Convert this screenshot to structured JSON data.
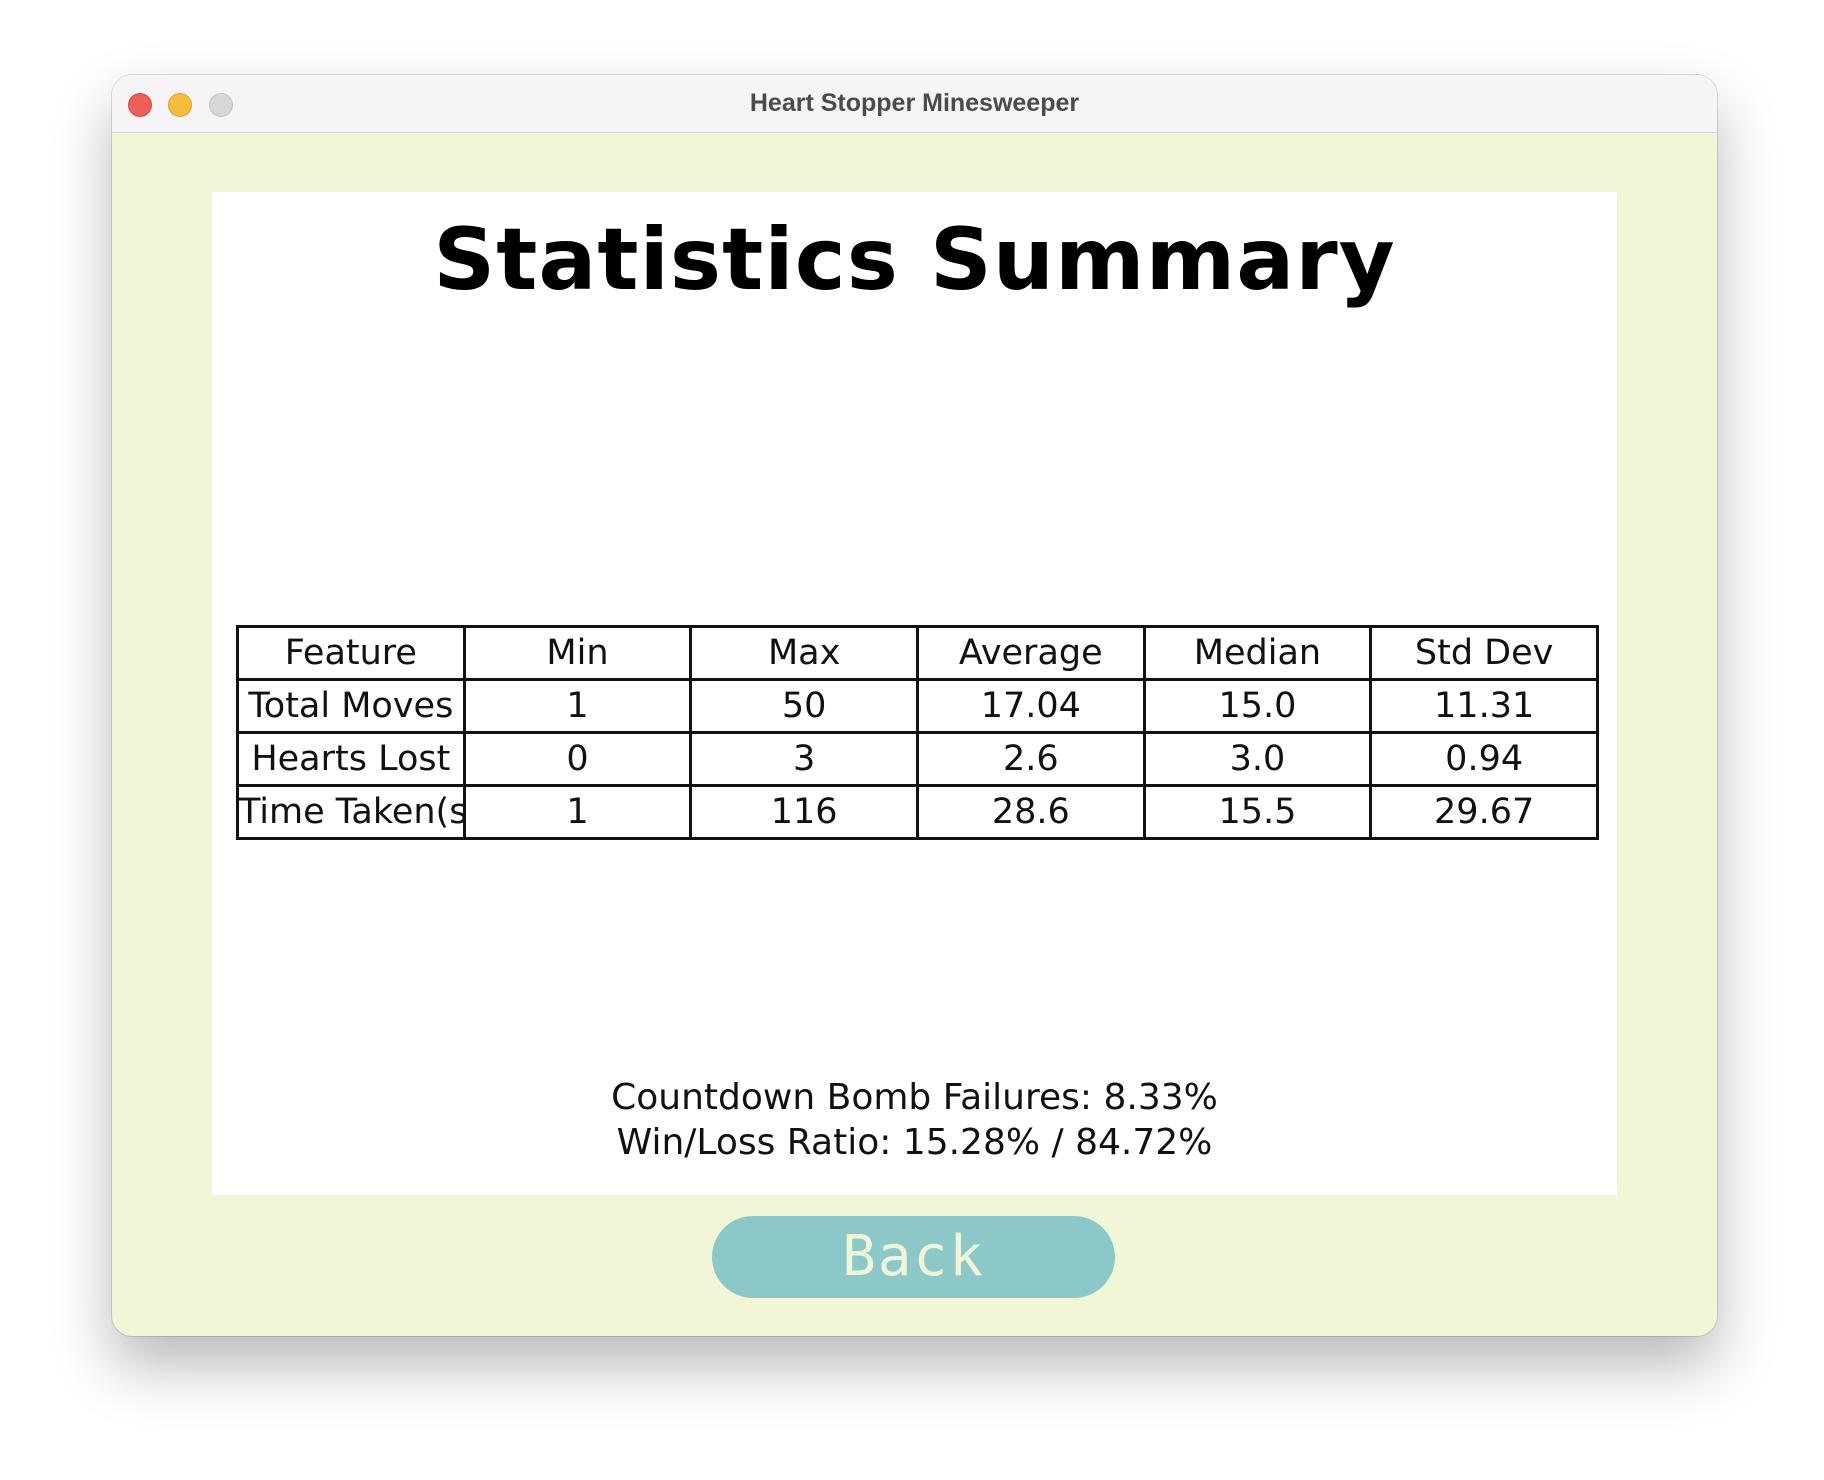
{
  "window": {
    "title": "Heart Stopper Minesweeper"
  },
  "panel": {
    "heading": "Statistics Summary"
  },
  "table": {
    "headers": [
      "Feature",
      "Min",
      "Max",
      "Average",
      "Median",
      "Std Dev"
    ],
    "rows": [
      [
        "Total Moves",
        "1",
        "50",
        "17.04",
        "15.0",
        "11.31"
      ],
      [
        "Hearts Lost",
        "0",
        "3",
        "2.6",
        "3.0",
        "0.94"
      ],
      [
        "Time Taken(s)",
        "1",
        "116",
        "28.6",
        "15.5",
        "29.67"
      ]
    ]
  },
  "summary": {
    "bomb_failures": "Countdown Bomb Failures: 8.33%",
    "win_loss": "Win/Loss Ratio: 15.28% / 84.72%"
  },
  "back_button": {
    "label": "Back"
  },
  "colors": {
    "window_bg": "#f3f6d6",
    "button_bg": "#8cc8c8",
    "button_text": "#eef6d8"
  }
}
